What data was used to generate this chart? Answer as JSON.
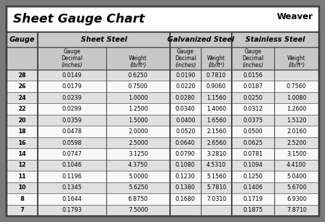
{
  "title": "Sheet Gauge Chart",
  "bg_outer": "#7a7a7a",
  "bg_inner": "#ffffff",
  "header_bg": "#c8c8c8",
  "row_alt_bg": "#e0e0e0",
  "row_white_bg": "#f8f8f8",
  "border_color": "#444444",
  "title_bar_bg": "#ffffff",
  "gauge_col": [
    28,
    26,
    24,
    22,
    20,
    18,
    16,
    14,
    12,
    11,
    10,
    8,
    7
  ],
  "sheet_steel": {
    "decimal": [
      "0.0149",
      "0.0179",
      "0.0239",
      "0.0299",
      "0.0359",
      "0.0478",
      "0.0598",
      "0.0747",
      "0.1046",
      "0.1196",
      "0.1345",
      "0.1644",
      "0.1793"
    ],
    "weight": [
      "0.6250",
      "0.7500",
      "1.0000",
      "1.2500",
      "1.5000",
      "2.0000",
      "2.5000",
      "3.1250",
      "4.3750",
      "5.0000",
      "5.6250",
      "6.8750",
      "7.5000"
    ]
  },
  "galvanized_steel": {
    "decimal": [
      "0.0190",
      "0.0220",
      "0.0280",
      "0.0340",
      "0.0400",
      "0.0520",
      "0.0640",
      "0.0790",
      "0.1080",
      "0.1230",
      "0.1380",
      "0.1680",
      ""
    ],
    "weight": [
      "0.7810",
      "0.9060",
      "1.1560",
      "1.4060",
      "1.6560",
      "2.1560",
      "2.6560",
      "3.2810",
      "4.5310",
      "5.1560",
      "5.7810",
      "7.0310",
      ""
    ]
  },
  "stainless_steel": {
    "decimal": [
      "0.0156",
      "0.0187",
      "0.0250",
      "0.0312",
      "0.0375",
      "0.0500",
      "0.0625",
      "0.0781",
      "0.1094",
      "0.1250",
      "0.1406",
      "0.1719",
      "0.1875"
    ],
    "weight": [
      "",
      "0.7560",
      "1.0080",
      "1.2600",
      "1.5120",
      "2.0160",
      "2.5200",
      "3.1500",
      "4.4100",
      "5.0400",
      "5.6700",
      "6.9300",
      "7.8710"
    ]
  },
  "col_dividers_x": [
    55,
    155,
    248,
    338,
    428
  ],
  "figw": 4.74,
  "figh": 3.25,
  "dpi": 100
}
